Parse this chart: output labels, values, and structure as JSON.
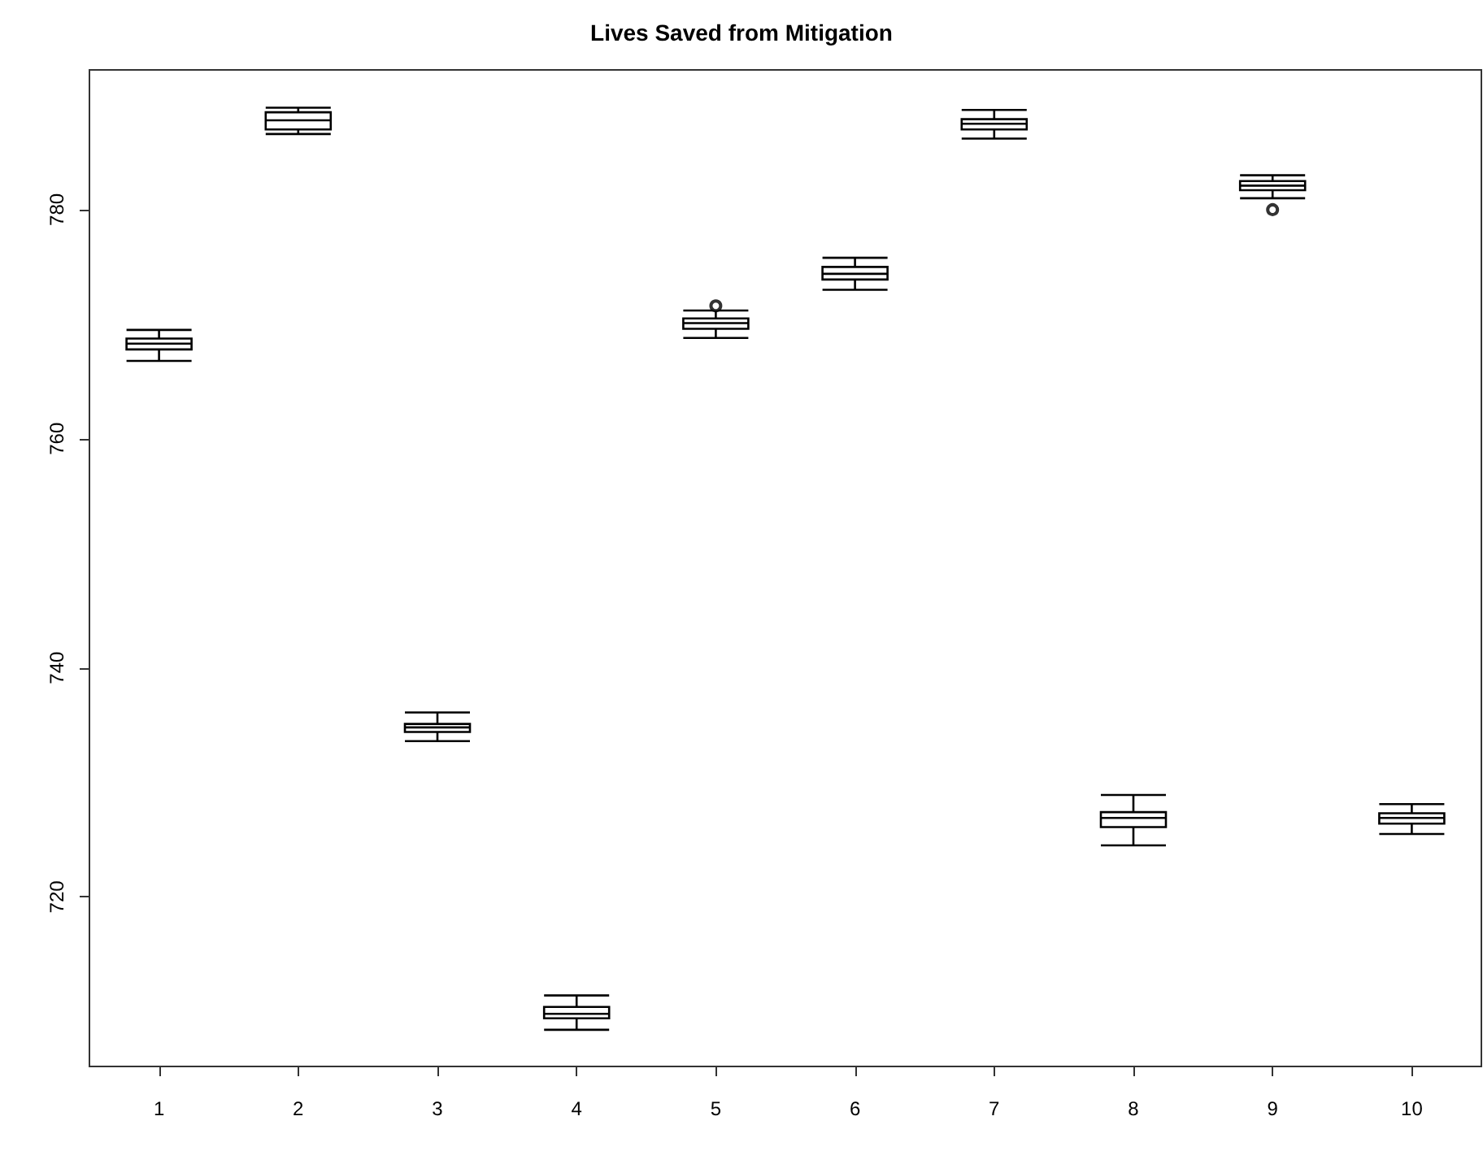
{
  "chart_data": {
    "type": "box",
    "title": "Lives Saved from Mitigation",
    "categories": [
      "1",
      "2",
      "3",
      "4",
      "5",
      "6",
      "7",
      "8",
      "9",
      "10"
    ],
    "boxes": [
      {
        "low": 766.8,
        "q1": 767.8,
        "median": 768.3,
        "q3": 768.75,
        "high": 769.5
      },
      {
        "low": 786.6,
        "q1": 787.0,
        "median": 787.8,
        "q3": 788.5,
        "high": 788.9
      },
      {
        "low": 733.6,
        "q1": 734.4,
        "median": 734.8,
        "q3": 735.1,
        "high": 736.1
      },
      {
        "low": 708.4,
        "q1": 709.4,
        "median": 709.8,
        "q3": 710.4,
        "high": 711.4
      },
      {
        "low": 768.8,
        "q1": 769.6,
        "median": 770.1,
        "q3": 770.5,
        "high": 771.2,
        "outliers": [
          771.6
        ]
      },
      {
        "low": 773.0,
        "q1": 773.9,
        "median": 774.4,
        "q3": 775.0,
        "high": 775.8
      },
      {
        "low": 786.2,
        "q1": 787.0,
        "median": 787.5,
        "q3": 787.9,
        "high": 788.7
      },
      {
        "low": 724.5,
        "q1": 726.1,
        "median": 726.9,
        "q3": 727.4,
        "high": 728.9
      },
      {
        "low": 781.0,
        "q1": 781.7,
        "median": 782.1,
        "q3": 782.5,
        "high": 783.0,
        "outliers": [
          780.0
        ]
      },
      {
        "low": 725.5,
        "q1": 726.4,
        "median": 726.9,
        "q3": 727.3,
        "high": 728.1
      }
    ],
    "ylim": [
      705.2,
      792.2
    ],
    "yticks": [
      720,
      740,
      760,
      780
    ],
    "grid": false
  }
}
